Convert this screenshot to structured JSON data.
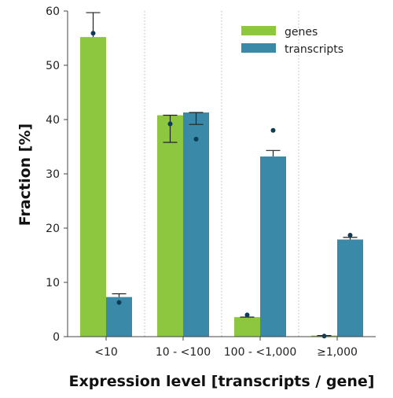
{
  "chart_data": {
    "type": "bar",
    "xlabel": "Expression level [transcripts / gene]",
    "ylabel": "Fraction [%]",
    "categories": [
      "<10",
      "10 - <100",
      "100 - <1,000",
      "≥1,000"
    ],
    "ylim": [
      0,
      60
    ],
    "yticks": [
      0,
      10,
      20,
      30,
      40,
      50,
      60
    ],
    "grid": "vertical dotted separators between categories",
    "legend_position": "top-right",
    "series": [
      {
        "name": "genes",
        "color": "#8dc63f",
        "values": [
          55.2,
          40.8,
          3.6,
          0.2
        ],
        "error_upper": [
          59.7,
          40.8,
          3.6,
          0.2
        ],
        "error_lower": [
          55.2,
          35.8,
          3.6,
          0.2
        ],
        "points": [
          55.9,
          39.2,
          4.0,
          0.1
        ]
      },
      {
        "name": "transcripts",
        "color": "#3a89a8",
        "values": [
          7.3,
          41.3,
          33.2,
          17.9
        ],
        "error_upper": [
          7.9,
          41.3,
          34.3,
          18.3
        ],
        "error_lower": [
          7.3,
          39.1,
          33.2,
          17.9
        ],
        "points": [
          6.3,
          36.4,
          38.0,
          18.7
        ]
      }
    ],
    "point_color": "#0d3d55"
  }
}
